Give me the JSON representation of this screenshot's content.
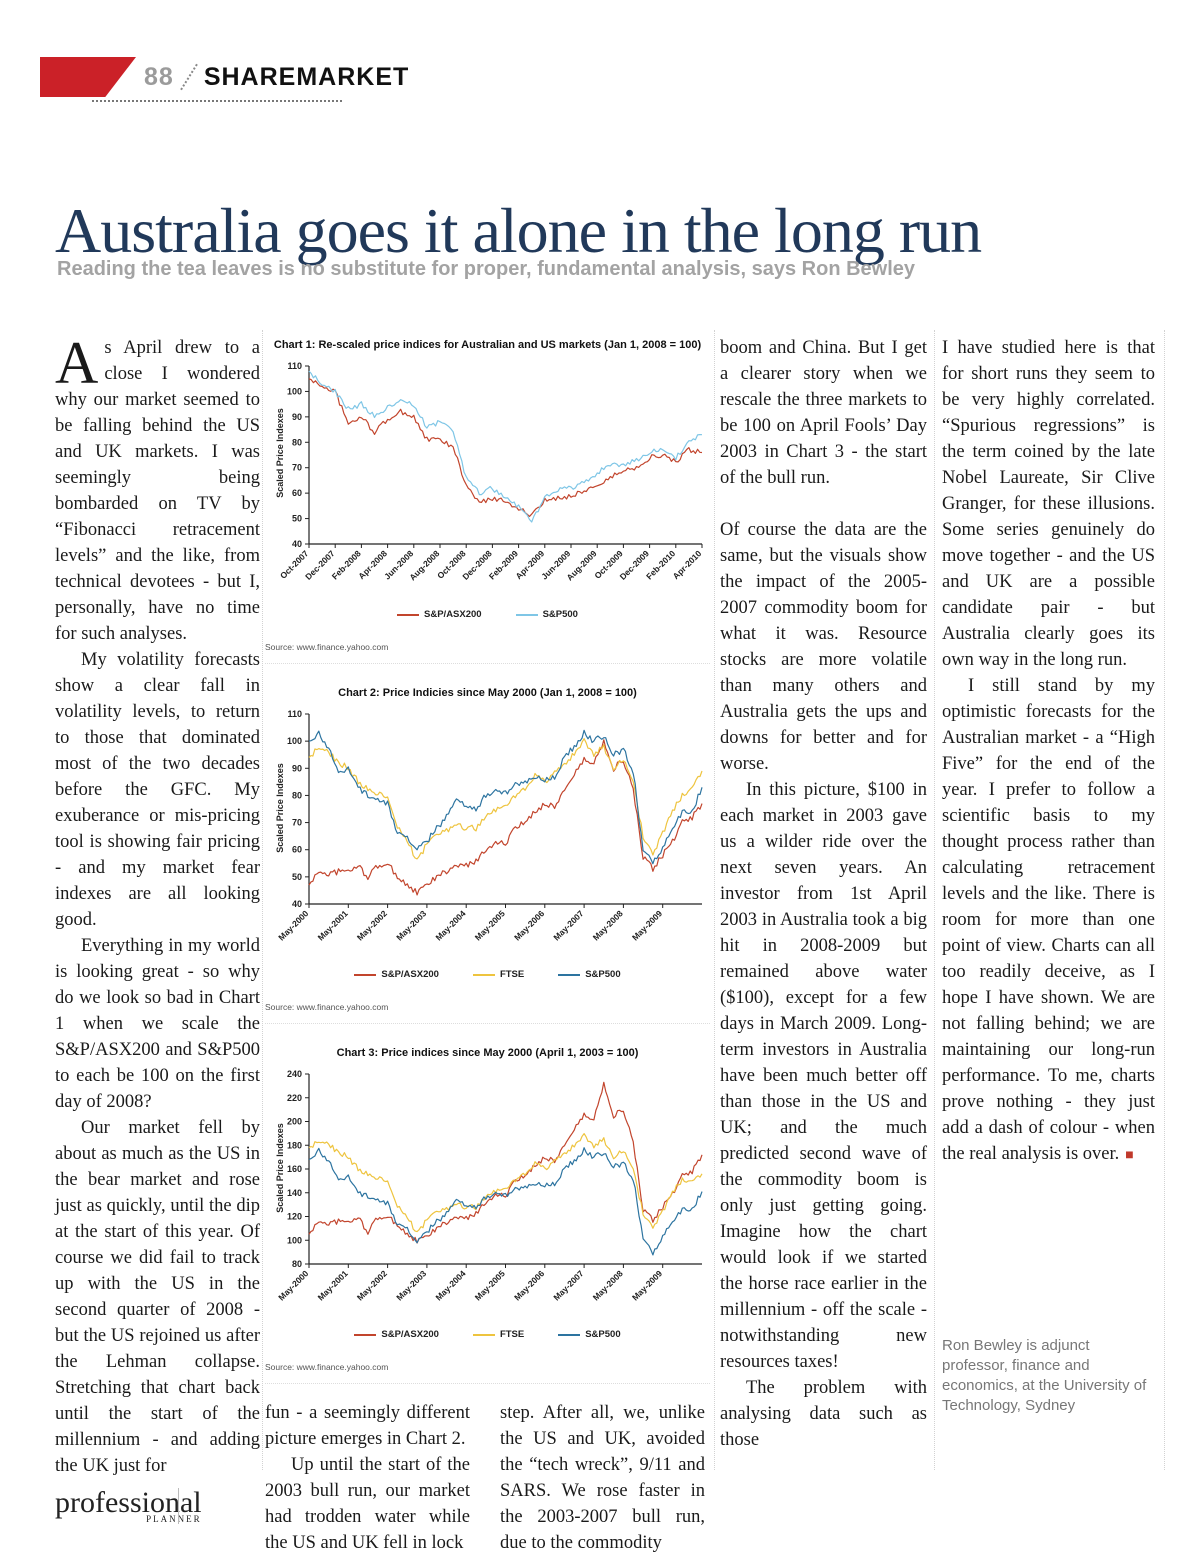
{
  "header": {
    "page_number": "88",
    "section": "SHAREMARKET"
  },
  "headline": "Australia goes it alone in the long run",
  "standfirst": "Reading the tea leaves is no substitute for proper, fundamental analysis, says Ron Bewley",
  "article": {
    "col1": {
      "dropcap": "A",
      "p1": "s April drew to a close I wondered why our market seemed to be falling behind the US and UK markets. I was seemingly being bombarded on TV by “Fibonacci retracement levels” and the like, from technical devotees - but I, personally, have no time for such analyses.",
      "p2": "My volatility forecasts show a clear fall in volatility levels, to return to those that dominated most of the two decades before the GFC. My exuberance or mis-pricing tool is showing fair pricing - and my market fear indexes are all looking good.",
      "p3": "Everything in my world is looking great - so why do we look so bad in Chart 1 when we scale the S&P/ASX200 and S&P500 to each be 100 on the first day of 2008?",
      "p4": "Our market fell by about as much as the US in the bear market and rose just as quickly, until the dip at the start of this year. Of course we did fail to track up with the US in the second quarter of 2008 - but the US rejoined us after the Lehman collapse. Stretching that chart back until the start of the millennium - and adding the UK just for"
    },
    "mid_a": {
      "p1": "fun - a seemingly different picture emerges in Chart 2.",
      "p2": "Up until the start of the 2003 bull run, our market had trodden water while the US and UK fell in lock"
    },
    "mid_b": {
      "p1": "step. After all, we, unlike the US and UK, avoided the “tech wreck”, 9/11 and SARS. We rose faster in the 2003-2007 bull run, due to the commodity"
    },
    "col3": {
      "p1": "boom and China. But I get a clearer story when we rescale the three markets to be 100 on April Fools’ Day 2003 in Chart 3 - the start of the bull run.",
      "p2": "Of course the data are the same, but the visuals show the impact of the 2005-2007 commodity boom for what it was. Resource stocks are more volatile than many others and Australia gets the ups and downs for better and for worse.",
      "p3": "In this picture, $100 in each market in 2003 gave us a wilder ride over the next seven years. An investor from 1st April 2003 in Australia took a big hit in 2008-2009 but remained above water ($100), except for a few days in March 2009. Long-term investors in Australia have been much better off than those in the US and UK; and the much predicted second wave of the commodity boom is only just getting going. Imagine how the chart would look if we started the horse race earlier in the millennium - off the scale - notwithstanding new resources taxes!",
      "p4": "The problem with analysing data such as those"
    },
    "col4": {
      "p1": "I have studied here is that for short runs they seem to be very highly correlated. “Spurious regressions” is the term coined by the late Nobel Laureate, Sir Clive Granger, for these illusions. Some series genuinely do move together - and the US and UK are a possible candidate pair - but Australia clearly goes its own way in the long run.",
      "p2": "I still stand by my optimistic forecasts for the Australian market - a “High Five” for the end of the year. I prefer to follow a scientific basis to my thought process rather than calculating retracement levels and the like. There is room for more than one point of view. Charts can all too readily deceive, as I hope I have shown. We are not falling behind; we are maintaining our long-run performance. To me, charts prove nothing - they just add a dash of colour - when the real analysis is over."
    },
    "end_mark": "■",
    "bio": "Ron Bewley is adjunct professor, finance and economics, at the University of Technology, Sydney"
  },
  "footer": {
    "logo_word": "professional",
    "logo_sub": "PLANNER"
  },
  "chart_data": [
    {
      "type": "line",
      "title": "Chart 1: Re-scaled price indices for Australian and US markets (Jan 1, 2008 = 100)",
      "ylabel": "Scaled Price Indexes",
      "source": "Source: www.finance.yahoo.com",
      "ylim": [
        40,
        110
      ],
      "ytick_step": 10,
      "grid": false,
      "legend_position": "bottom",
      "x_tick_labels": [
        "Oct-2007",
        "Dec-2007",
        "Feb-2008",
        "Apr-2008",
        "Jun-2008",
        "Aug-2008",
        "Oct-2008",
        "Dec-2008",
        "Feb-2009",
        "Apr-2009",
        "Jun-2009",
        "Aug-2009",
        "Oct-2009",
        "Dec-2009",
        "Feb-2010",
        "Apr-2010"
      ],
      "tick_point_step": 2,
      "noise": 1.0,
      "smooth": 6,
      "series": [
        {
          "name": "S&P/ASX200",
          "color": "#c2452d",
          "values": [
            105,
            102,
            100,
            87,
            90,
            84,
            89,
            92,
            90,
            81,
            81,
            78,
            63,
            56,
            58,
            57,
            54,
            51,
            57,
            58,
            59,
            61,
            63,
            66,
            69,
            70,
            74,
            75,
            72,
            77,
            76
          ]
        },
        {
          "name": "S&P500",
          "color": "#7fc6e6",
          "values": [
            108,
            103,
            100,
            93,
            95,
            90,
            94,
            97,
            94,
            86,
            88,
            84,
            66,
            60,
            62,
            58,
            55,
            49,
            58,
            61,
            62,
            64,
            68,
            71,
            71,
            73,
            76,
            77,
            74,
            80,
            83
          ]
        }
      ]
    },
    {
      "type": "line",
      "title": "Chart 2: Price Indicies since May 2000 (Jan 1, 2008 = 100)",
      "ylabel": "Scaled Price Indexes",
      "source": "Source: www.finance.yahoo.com",
      "ylim": [
        40,
        110
      ],
      "ytick_step": 10,
      "grid": false,
      "legend_position": "bottom",
      "x_tick_labels": [
        "May-2000",
        "May-2001",
        "May-2002",
        "May-2003",
        "May-2004",
        "May-2005",
        "May-2006",
        "May-2007",
        "May-2008",
        "May-2009"
      ],
      "tick_point_step": 4,
      "noise": 1.1,
      "smooth": 5,
      "series": [
        {
          "name": "S&P/ASX200",
          "color": "#c2452d",
          "values": [
            47,
            52,
            51,
            52,
            52,
            54,
            50,
            54,
            55,
            50,
            47,
            44,
            47,
            50,
            52,
            54,
            54,
            56,
            60,
            63,
            62,
            68,
            70,
            74,
            77,
            76,
            82,
            88,
            93,
            92,
            100,
            90,
            93,
            82,
            57,
            53,
            58,
            63,
            70,
            72,
            77
          ]
        },
        {
          "name": "FTSE",
          "color": "#eec43f",
          "values": [
            94,
            98,
            96,
            92,
            90,
            85,
            82,
            81,
            80,
            68,
            63,
            56,
            62,
            65,
            67,
            69,
            68,
            68,
            72,
            75,
            76,
            80,
            82,
            87,
            85,
            88,
            92,
            95,
            100,
            95,
            98,
            90,
            93,
            85,
            65,
            58,
            66,
            74,
            80,
            82,
            89
          ]
        },
        {
          "name": "S&P500",
          "color": "#2d74a0",
          "values": [
            100,
            103,
            97,
            89,
            90,
            83,
            80,
            79,
            77,
            66,
            64,
            60,
            63,
            68,
            72,
            78,
            76,
            75,
            80,
            82,
            81,
            84,
            85,
            87,
            86,
            87,
            94,
            98,
            103,
            100,
            102,
            95,
            97,
            89,
            60,
            55,
            61,
            68,
            74,
            74,
            83
          ]
        }
      ]
    },
    {
      "type": "line",
      "title": "Chart 3: Price indices since May 2000 (April 1, 2003 = 100)",
      "ylabel": "Scaled Price Indexes",
      "source": "Source: www.finance.yahoo.com",
      "ylim": [
        80,
        240
      ],
      "ytick_step": 20,
      "grid": false,
      "legend_position": "bottom",
      "x_tick_labels": [
        "May-2000",
        "May-2001",
        "May-2002",
        "May-2003",
        "May-2004",
        "May-2005",
        "May-2006",
        "May-2007",
        "May-2008",
        "May-2009"
      ],
      "tick_point_step": 4,
      "noise": 2.2,
      "smooth": 5,
      "series": [
        {
          "name": "S&P/ASX200",
          "color": "#c2452d",
          "values": [
            105,
            116,
            114,
            116,
            115,
            119,
            107,
            119,
            120,
            113,
            105,
            99,
            103,
            110,
            115,
            119,
            118,
            123,
            132,
            139,
            137,
            150,
            154,
            163,
            170,
            167,
            180,
            194,
            205,
            202,
            232,
            205,
            210,
            182,
            125,
            117,
            128,
            139,
            154,
            158,
            172
          ]
        },
        {
          "name": "FTSE",
          "color": "#eec43f",
          "values": [
            178,
            184,
            181,
            174,
            170,
            160,
            155,
            153,
            151,
            128,
            119,
            106,
            117,
            123,
            126,
            130,
            128,
            128,
            136,
            142,
            143,
            151,
            155,
            164,
            160,
            166,
            174,
            179,
            188,
            179,
            185,
            170,
            175,
            160,
            123,
            110,
            124,
            140,
            151,
            148,
            156
          ]
        },
        {
          "name": "S&P500",
          "color": "#2d74a0",
          "values": [
            168,
            176,
            166,
            152,
            154,
            140,
            137,
            135,
            131,
            113,
            109,
            98,
            107,
            116,
            122,
            133,
            129,
            128,
            136,
            140,
            138,
            143,
            145,
            148,
            147,
            148,
            160,
            167,
            176,
            170,
            174,
            162,
            165,
            152,
            102,
            88,
            104,
            116,
            126,
            126,
            141
          ]
        }
      ]
    }
  ]
}
